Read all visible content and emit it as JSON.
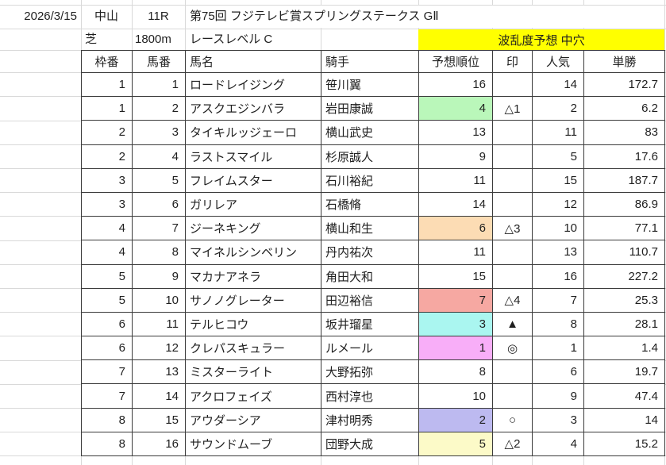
{
  "race_info": {
    "date": "2026/3/15",
    "track": "中山",
    "race_no": "11R",
    "title": "第75回 フジテレビ賞スプリングステークス GⅡ",
    "surface": "芝",
    "distance": "1800m",
    "race_level": "レースレベル C",
    "volatility_label": "波乱度予想 中穴",
    "volatility_bg": "#ffff00"
  },
  "table": {
    "headers": [
      "枠番",
      "馬番",
      "馬名",
      "騎手",
      "予想順位",
      "印",
      "人気",
      "単勝"
    ],
    "rows": [
      {
        "waku": "1",
        "uma": "1",
        "name": "ロードレイジング",
        "jockey": "笹川翼",
        "rank": "16",
        "mark": "",
        "pop": "14",
        "odds": "172.7",
        "rank_bg": ""
      },
      {
        "waku": "1",
        "uma": "2",
        "name": "アスクエジンバラ",
        "jockey": "岩田康誠",
        "rank": "4",
        "mark": "△1",
        "pop": "2",
        "odds": "6.2",
        "rank_bg": "#baf7ba"
      },
      {
        "waku": "2",
        "uma": "3",
        "name": "タイキルッジェーロ",
        "jockey": "横山武史",
        "rank": "13",
        "mark": "",
        "pop": "11",
        "odds": "83",
        "rank_bg": ""
      },
      {
        "waku": "2",
        "uma": "4",
        "name": "ラストスマイル",
        "jockey": "杉原誠人",
        "rank": "9",
        "mark": "",
        "pop": "5",
        "odds": "17.6",
        "rank_bg": ""
      },
      {
        "waku": "3",
        "uma": "5",
        "name": "フレイムスター",
        "jockey": "石川裕紀",
        "rank": "11",
        "mark": "",
        "pop": "15",
        "odds": "187.7",
        "rank_bg": ""
      },
      {
        "waku": "3",
        "uma": "6",
        "name": "ガリレア",
        "jockey": "石橋脩",
        "rank": "14",
        "mark": "",
        "pop": "12",
        "odds": "86.9",
        "rank_bg": ""
      },
      {
        "waku": "4",
        "uma": "7",
        "name": "ジーネキング",
        "jockey": "横山和生",
        "rank": "6",
        "mark": "△3",
        "pop": "10",
        "odds": "77.1",
        "rank_bg": "#fcdcb4"
      },
      {
        "waku": "4",
        "uma": "8",
        "name": "マイネルシンベリン",
        "jockey": "丹内祐次",
        "rank": "11",
        "mark": "",
        "pop": "13",
        "odds": "110.7",
        "rank_bg": ""
      },
      {
        "waku": "5",
        "uma": "9",
        "name": "マカナアネラ",
        "jockey": "角田大和",
        "rank": "15",
        "mark": "",
        "pop": "16",
        "odds": "227.2",
        "rank_bg": ""
      },
      {
        "waku": "5",
        "uma": "10",
        "name": "サノノグレーター",
        "jockey": "田辺裕信",
        "rank": "7",
        "mark": "△4",
        "pop": "7",
        "odds": "25.3",
        "rank_bg": "#f6a8a2"
      },
      {
        "waku": "6",
        "uma": "11",
        "name": "テルヒコウ",
        "jockey": "坂井瑠星",
        "rank": "3",
        "mark": "▲",
        "pop": "8",
        "odds": "28.1",
        "rank_bg": "#aaf6f0"
      },
      {
        "waku": "6",
        "uma": "12",
        "name": "クレパスキュラー",
        "jockey": "ルメール",
        "rank": "1",
        "mark": "◎",
        "pop": "1",
        "odds": "1.4",
        "rank_bg": "#f8aef8"
      },
      {
        "waku": "7",
        "uma": "13",
        "name": "ミスターライト",
        "jockey": "大野拓弥",
        "rank": "8",
        "mark": "",
        "pop": "6",
        "odds": "19.7",
        "rank_bg": ""
      },
      {
        "waku": "7",
        "uma": "14",
        "name": "アクロフェイズ",
        "jockey": "西村淳也",
        "rank": "10",
        "mark": "",
        "pop": "9",
        "odds": "47.4",
        "rank_bg": ""
      },
      {
        "waku": "8",
        "uma": "15",
        "name": "アウダーシア",
        "jockey": "津村明秀",
        "rank": "2",
        "mark": "○",
        "pop": "3",
        "odds": "14",
        "rank_bg": "#bdbaf0"
      },
      {
        "waku": "8",
        "uma": "16",
        "name": "サウンドムーブ",
        "jockey": "団野大成",
        "rank": "5",
        "mark": "△2",
        "pop": "4",
        "odds": "15.2",
        "rank_bg": "#fcfac8"
      }
    ]
  }
}
